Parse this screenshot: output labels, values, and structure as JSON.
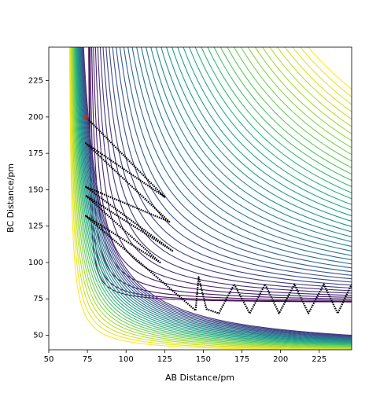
{
  "chart_data": {
    "type": "contour-trajectory",
    "xlabel": "AB Distance/pm",
    "ylabel": "BC Distance/pm",
    "xlim": [
      50,
      246
    ],
    "ylim": [
      40,
      248
    ],
    "xticks": [
      50,
      75,
      100,
      125,
      150,
      175,
      200,
      225
    ],
    "yticks": [
      50,
      75,
      100,
      125,
      150,
      175,
      200,
      225
    ],
    "series": [
      {
        "color": "#000000",
        "x": [
          74,
          125,
          74,
          128,
          74,
          130,
          74,
          122,
          74,
          145,
          147,
          152,
          160,
          170,
          180,
          190,
          199,
          209,
          218,
          228,
          237,
          246
        ],
        "y": [
          200,
          145,
          182,
          128,
          152,
          108,
          146,
          100,
          132,
          67,
          90,
          68,
          65,
          85,
          65,
          85,
          65,
          85,
          65,
          85,
          65,
          85
        ]
      }
    ],
    "start": {
      "x": 74,
      "y": 200,
      "color": "#d62728"
    }
  }
}
